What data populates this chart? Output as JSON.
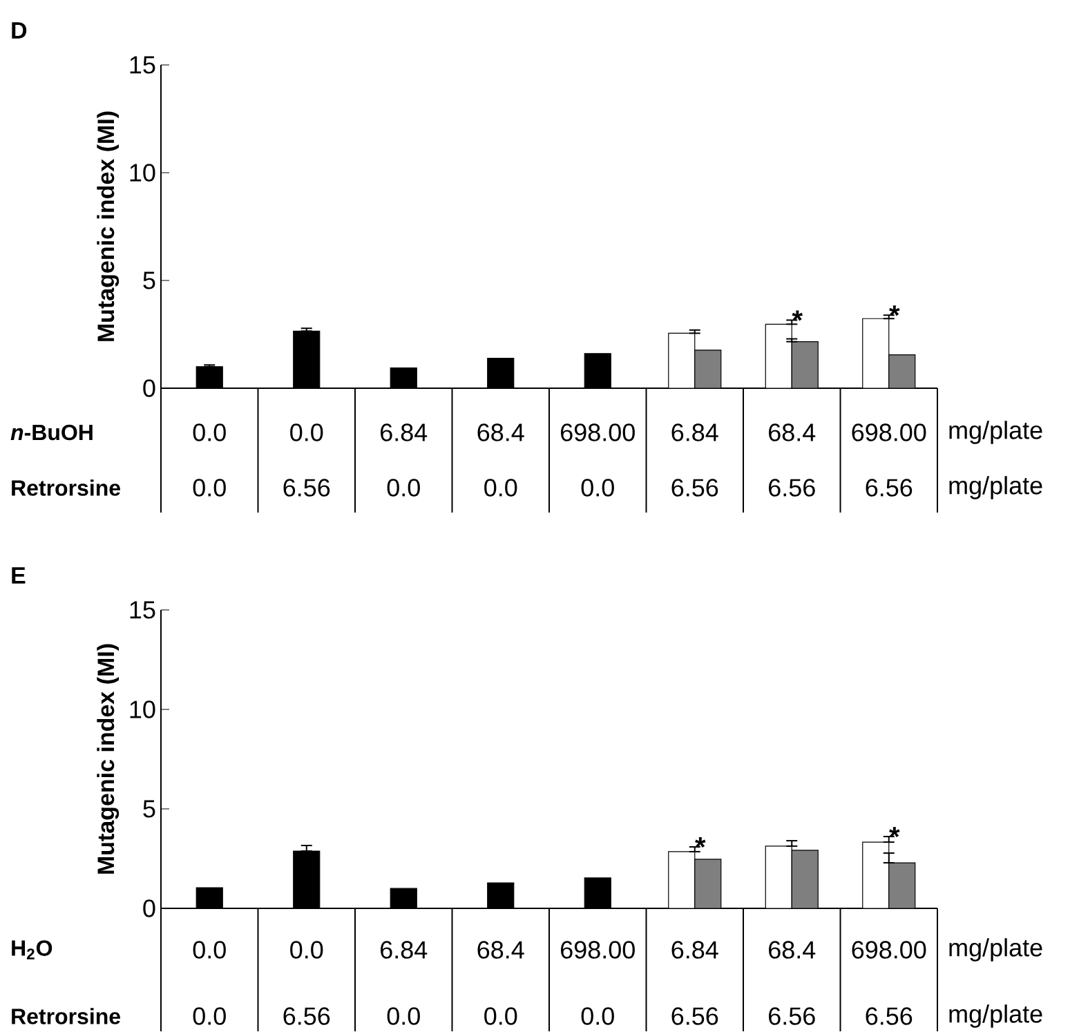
{
  "chart_data": [
    {
      "type": "bar",
      "title": "D",
      "ylabel": "Mutagenic index (MI)",
      "ylim": [
        0,
        15
      ],
      "yticks": [
        0,
        5,
        10,
        15
      ],
      "categories": [
        "0.0",
        "0.0",
        "6.84",
        "68.4",
        "698.00",
        "6.84",
        "68.4",
        "698.00"
      ],
      "series": [
        {
          "color": "#000000",
          "values": [
            1.0,
            2.65,
            0.94,
            1.39,
            1.61,
            null,
            null,
            null
          ],
          "errors": [
            [
              1.0,
              1.08
            ],
            [
              2.65,
              2.78
            ],
            null,
            null,
            null,
            null,
            null,
            null
          ]
        },
        {
          "color": "#ffffff",
          "values": [
            null,
            null,
            null,
            null,
            null,
            2.55,
            2.97,
            3.23
          ],
          "errors": [
            null,
            null,
            null,
            null,
            null,
            [
              2.55,
              2.7
            ],
            [
              2.97,
              3.16
            ],
            [
              3.23,
              3.39
            ]
          ]
        },
        {
          "color": "#7f7f7f",
          "values": [
            null,
            null,
            null,
            null,
            null,
            1.77,
            2.16,
            1.55
          ],
          "errors": [
            null,
            null,
            null,
            null,
            null,
            null,
            [
              2.16,
              2.29
            ],
            null
          ],
          "value_labels": [
            null,
            null,
            null,
            null,
            null,
            null,
            "*",
            "*"
          ]
        }
      ],
      "annotations": [
        "*n*-BuOH",
        "mg/plate",
        "Retrorsine",
        "mg/plate",
        "0.0",
        "6.56",
        "0.0",
        "0.0",
        "0.0",
        "6.56",
        "6.56",
        "6.56"
      ]
    },
    {
      "type": "bar",
      "title": "E",
      "ylabel": "Mutagenic index (MI)",
      "ylim": [
        0,
        15
      ],
      "yticks": [
        0,
        5,
        10,
        15
      ],
      "categories": [
        "0.0",
        "0.0",
        "6.84",
        "68.4",
        "698.00",
        "6.84",
        "68.4",
        "698.00"
      ],
      "series": [
        {
          "color": "#000000",
          "values": [
            1.04,
            2.88,
            1.0,
            1.28,
            1.53,
            null,
            null,
            null
          ],
          "errors": [
            null,
            [
              2.88,
              3.16
            ],
            null,
            null,
            null,
            null,
            null,
            null
          ]
        },
        {
          "color": "#ffffff",
          "values": [
            null,
            null,
            null,
            null,
            null,
            2.85,
            3.13,
            3.33
          ],
          "errors": [
            null,
            null,
            null,
            null,
            null,
            [
              2.85,
              3.09
            ],
            [
              3.13,
              3.4
            ],
            [
              3.33,
              3.61
            ]
          ]
        },
        {
          "color": "#7f7f7f",
          "values": [
            null,
            null,
            null,
            null,
            null,
            2.47,
            2.92,
            2.29
          ],
          "errors": [
            null,
            null,
            null,
            null,
            null,
            null,
            null,
            [
              2.29,
              2.78
            ]
          ],
          "value_labels": [
            null,
            null,
            null,
            null,
            null,
            "*",
            null,
            "*"
          ]
        }
      ],
      "annotations": [
        "H$_{2}$O",
        "mg/plate",
        "Retrorsine",
        "mg/plate",
        "0.0",
        "6.56",
        "0.0",
        "0.0",
        "0.0",
        "6.56",
        "6.56",
        "6.56"
      ]
    }
  ]
}
